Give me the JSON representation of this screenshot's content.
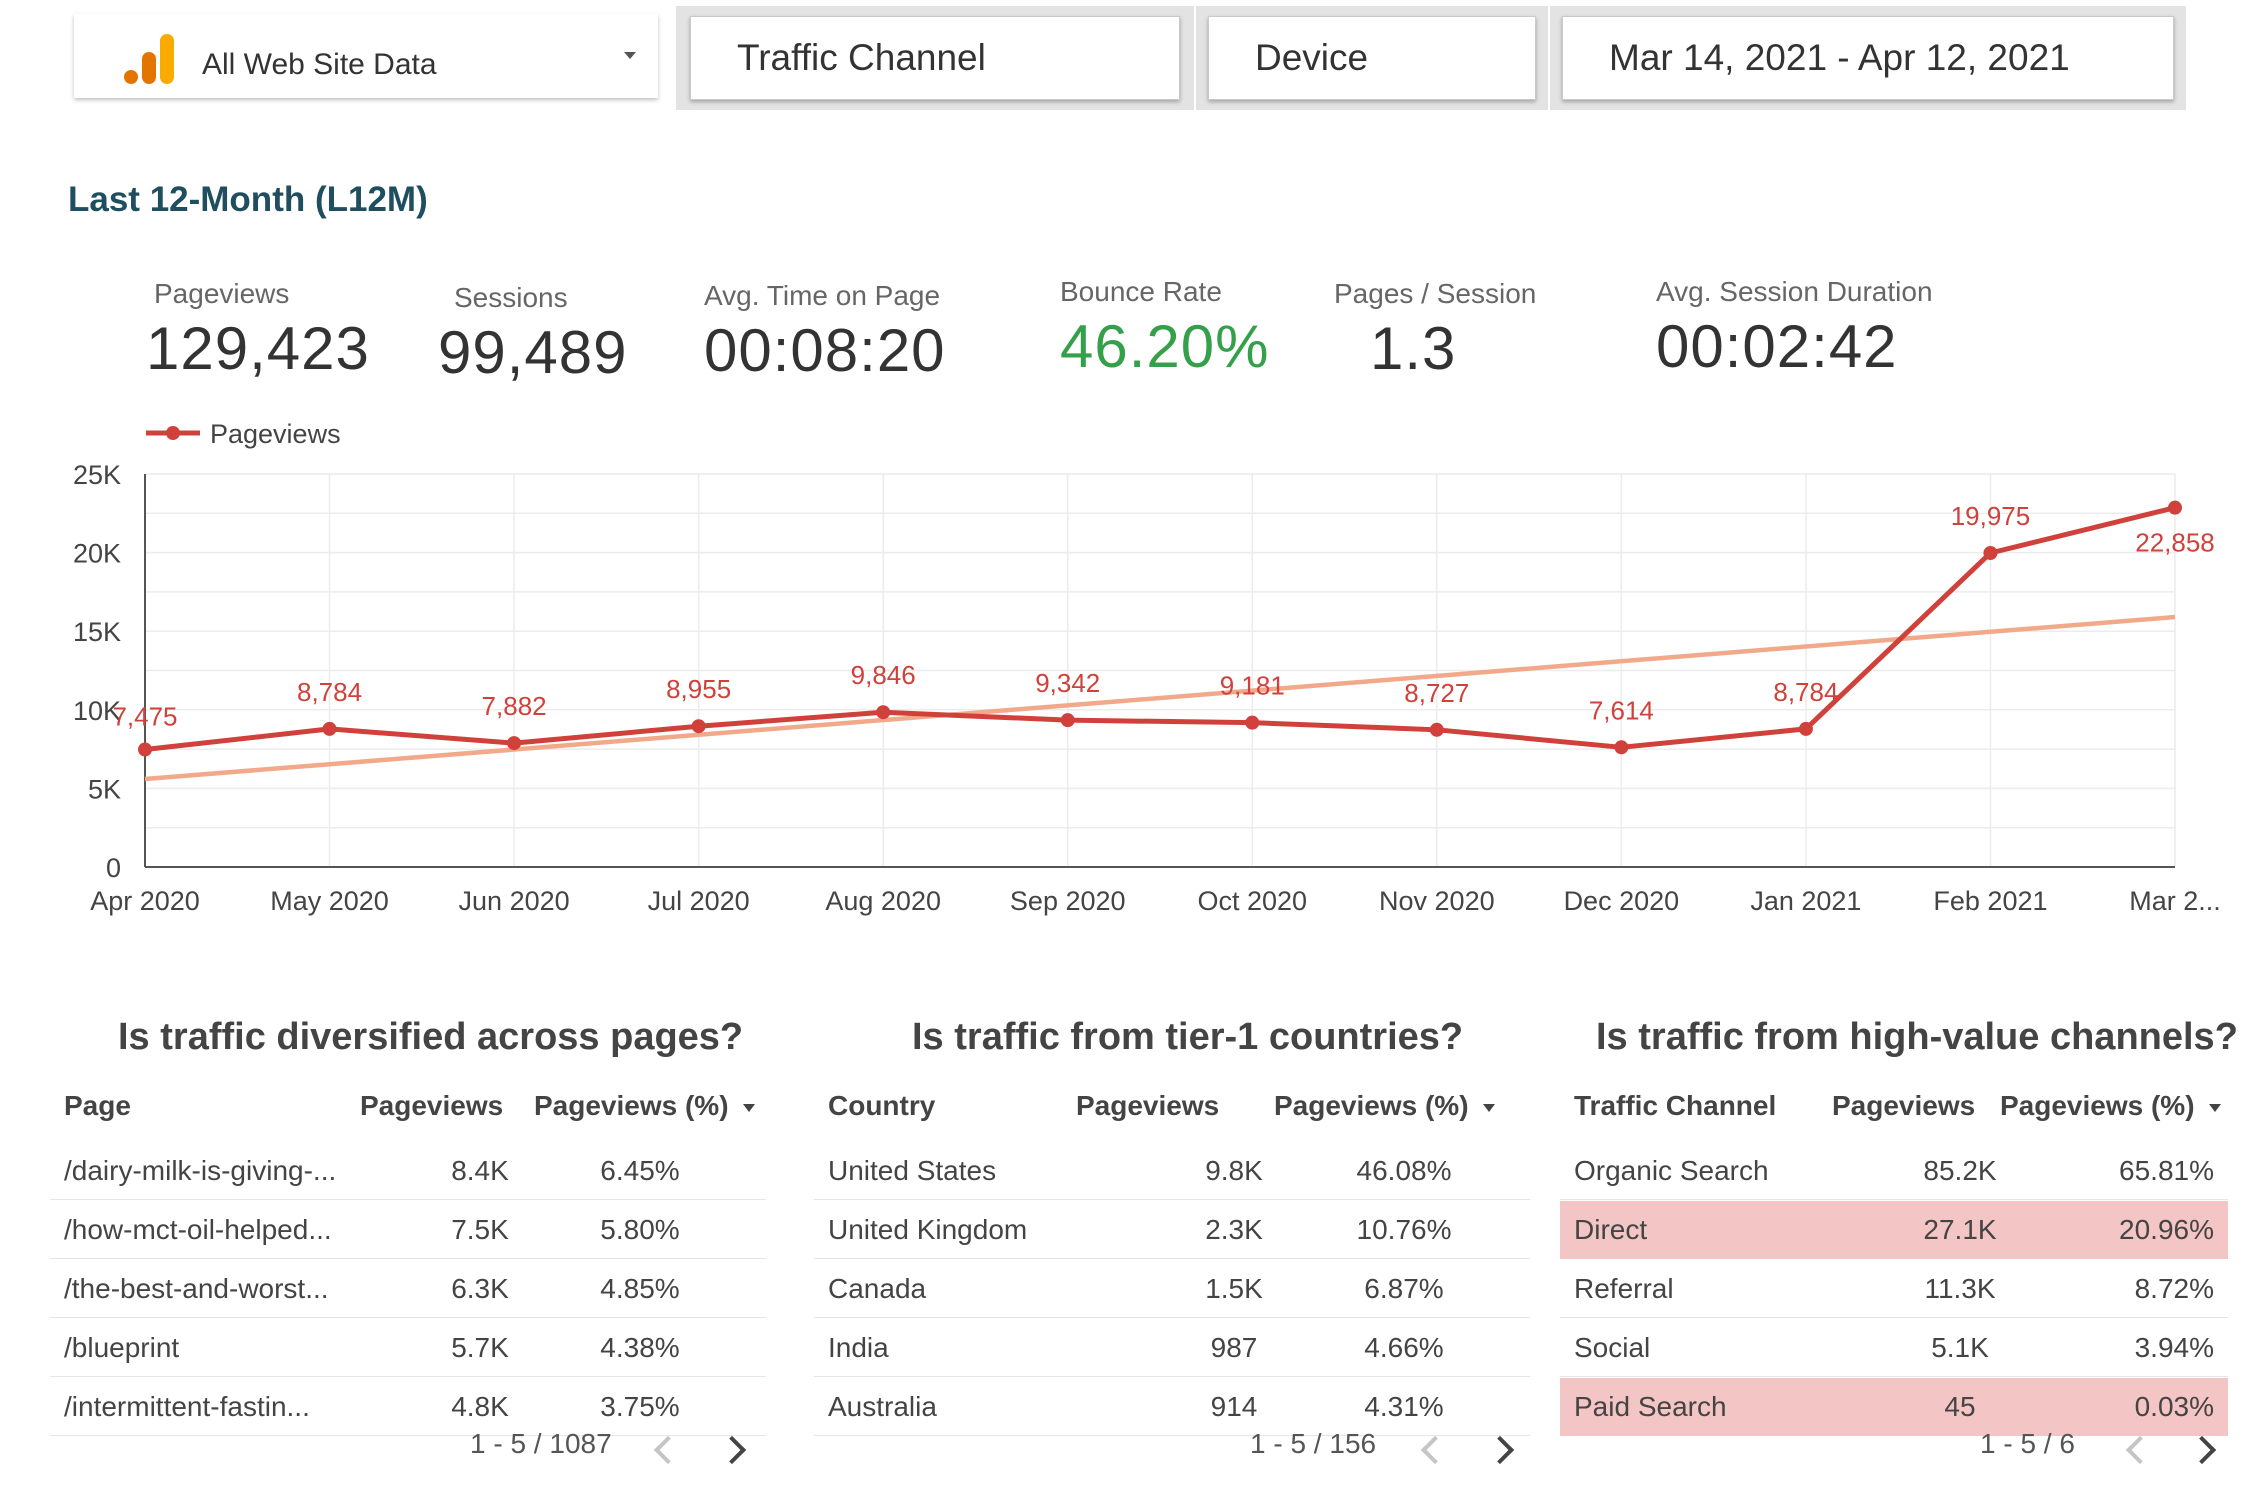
{
  "filters": {
    "account": "All Web Site Data",
    "channel": "Traffic Channel",
    "device": "Device",
    "date_range": "Mar 14, 2021 - Apr 12, 2021"
  },
  "section_title": "Last 12-Month (L12M)",
  "kpis": [
    {
      "label": "Pageviews",
      "value": "129,423"
    },
    {
      "label": "Sessions",
      "value": "99,489"
    },
    {
      "label": "Avg. Time on Page",
      "value": "00:08:20"
    },
    {
      "label": "Bounce Rate",
      "value": "46.20%"
    },
    {
      "label": "Pages / Session",
      "value": "1.3"
    },
    {
      "label": "Avg. Session Duration",
      "value": "00:02:42"
    }
  ],
  "chart_data": {
    "type": "line",
    "x": [
      "Apr 2020",
      "May 2020",
      "Jun 2020",
      "Jul 2020",
      "Aug 2020",
      "Sep 2020",
      "Oct 2020",
      "Nov 2020",
      "Dec 2020",
      "Jan 2021",
      "Feb 2021",
      "Mar 2..."
    ],
    "series": [
      {
        "name": "Pageviews",
        "values": [
          7475,
          8784,
          7882,
          8955,
          9846,
          9342,
          9181,
          8727,
          7614,
          8784,
          19975,
          22858
        ],
        "color": "#d0413b"
      }
    ],
    "data_labels": [
      "7,475",
      "8,784",
      "7,882",
      "8,955",
      "9,846",
      "9,342",
      "9,181",
      "8,727",
      "7,614",
      "8,784",
      "19,975",
      "22,858"
    ],
    "trendline": {
      "start": 5600,
      "end": 15900,
      "color": "#f1a98a"
    },
    "ylim": [
      0,
      25000
    ],
    "yticks": [
      0,
      5000,
      10000,
      15000,
      20000,
      25000
    ],
    "ytick_labels": [
      "0",
      "5K",
      "10K",
      "15K",
      "20K",
      "25K"
    ],
    "grid": true,
    "legend": "top-left"
  },
  "tables": [
    {
      "title": "Is traffic diversified across pages?",
      "headers": [
        "Page",
        "Pageviews",
        "Pageviews (%)"
      ],
      "rows": [
        [
          "/dairy-milk-is-giving-...",
          "8.4K",
          "6.45%"
        ],
        [
          "/how-mct-oil-helped...",
          "7.5K",
          "5.80%"
        ],
        [
          "/the-best-and-worst...",
          "6.3K",
          "4.85%"
        ],
        [
          "/blueprint",
          "5.7K",
          "4.38%"
        ],
        [
          "/intermittent-fastin...",
          "4.8K",
          "3.75%"
        ]
      ],
      "pager": "1 - 5 / 1087"
    },
    {
      "title": "Is traffic from tier-1 countries?",
      "headers": [
        "Country",
        "Pageviews",
        "Pageviews (%)"
      ],
      "rows": [
        [
          "United States",
          "9.8K",
          "46.08%"
        ],
        [
          "United Kingdom",
          "2.3K",
          "10.76%"
        ],
        [
          "Canada",
          "1.5K",
          "6.87%"
        ],
        [
          "India",
          "987",
          "4.66%"
        ],
        [
          "Australia",
          "914",
          "4.31%"
        ]
      ],
      "pager": "1 - 5 / 156"
    },
    {
      "title": "Is traffic from high-value channels?",
      "headers": [
        "Traffic Channel",
        "Pageviews",
        "Pageviews (%)"
      ],
      "rows": [
        [
          "Organic Search",
          "85.2K",
          "65.81%"
        ],
        [
          "Direct",
          "27.1K",
          "20.96%"
        ],
        [
          "Referral",
          "11.3K",
          "8.72%"
        ],
        [
          "Social",
          "5.1K",
          "3.94%"
        ],
        [
          "Paid Search",
          "45",
          "0.03%"
        ]
      ],
      "highlight_color": "#f4c5c5",
      "pager": "1 - 5 / 6"
    }
  ]
}
